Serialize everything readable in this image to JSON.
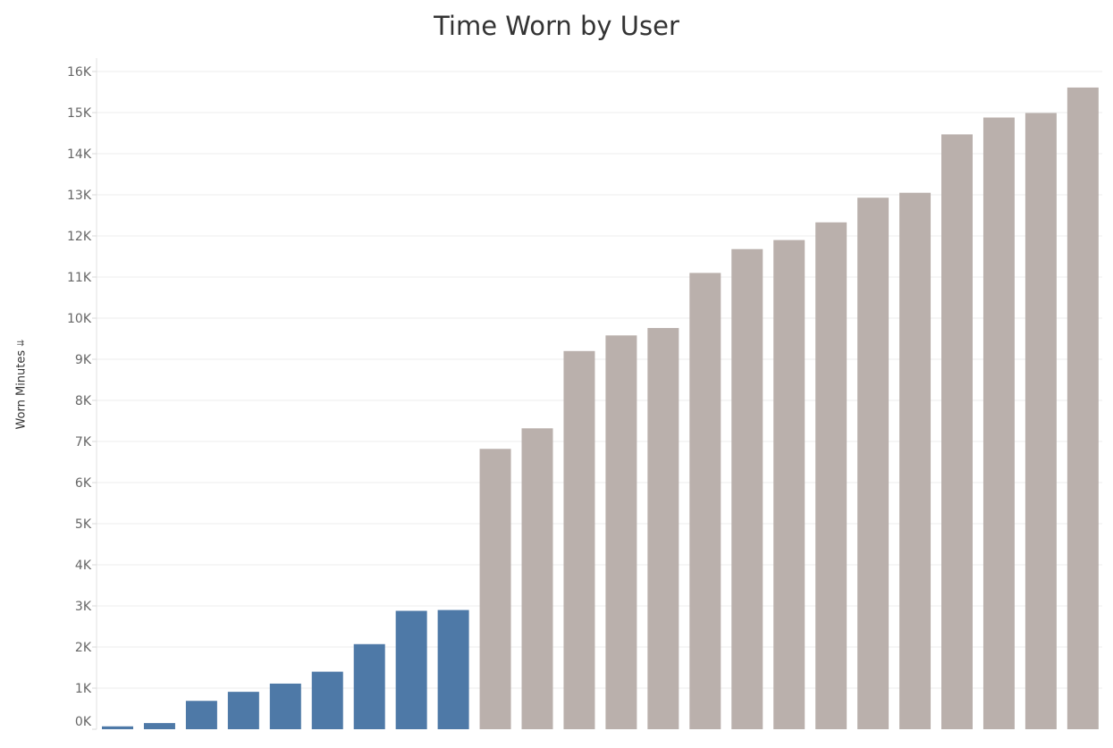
{
  "chart_data": {
    "type": "bar",
    "title": "Time Worn by User",
    "xlabel": "",
    "ylabel": "Worn Minutes",
    "ylim": [
      0,
      16000
    ],
    "y_ticks": [
      "0K",
      "1K",
      "2K",
      "3K",
      "4K",
      "5K",
      "6K",
      "7K",
      "8K",
      "9K",
      "10K",
      "11K",
      "12K",
      "13K",
      "14K",
      "15K",
      "16K"
    ],
    "grid": true,
    "colors": {
      "low": "#4e79a7",
      "high": "#bab0ac"
    },
    "values": [
      70,
      150,
      690,
      910,
      1110,
      1400,
      2070,
      2880,
      2900,
      6820,
      7320,
      9200,
      9580,
      9760,
      11100,
      11680,
      11900,
      12330,
      12930,
      13050,
      14470,
      14880,
      14990,
      15610
    ],
    "groups": [
      "low",
      "low",
      "low",
      "low",
      "low",
      "low",
      "low",
      "low",
      "low",
      "high",
      "high",
      "high",
      "high",
      "high",
      "high",
      "high",
      "high",
      "high",
      "high",
      "high",
      "high",
      "high",
      "high",
      "high"
    ]
  },
  "y_axis": {
    "sort_icon": "sort-descending-icon"
  }
}
